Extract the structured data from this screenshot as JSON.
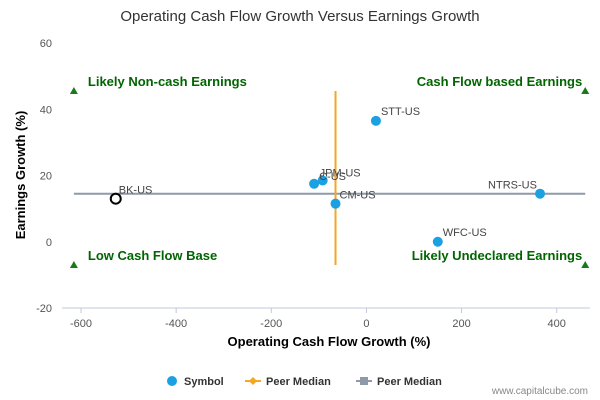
{
  "chart_data": {
    "type": "scatter",
    "title": "Operating Cash Flow Growth Versus Earnings Growth",
    "xlabel": "Operating Cash Flow Growth (%)",
    "ylabel": "Earnings Growth (%)",
    "xlim": [
      -640,
      470
    ],
    "ylim": [
      -20,
      60
    ],
    "x_ticks": [
      -600,
      -400,
      -200,
      0,
      200,
      400
    ],
    "y_ticks": [
      -20,
      0,
      20,
      40,
      60
    ],
    "grid": false,
    "legend_position": "bottom",
    "series": [
      {
        "name": "Symbol",
        "color": "#1ba1e2",
        "points": [
          {
            "label": "STT-US",
            "x": 20,
            "y": 36.5
          },
          {
            "label": "JPM-US",
            "x": -92,
            "y": 18.5
          },
          {
            "label": "C-US",
            "x": -110,
            "y": 17.5
          },
          {
            "label": "CM-US",
            "x": -65,
            "y": 11.5
          },
          {
            "label": "NTRS-US",
            "x": 365,
            "y": 14.5
          },
          {
            "label": "WFC-US",
            "x": 150,
            "y": 0
          },
          {
            "label": "BK-US",
            "x": -527,
            "y": 13,
            "hollow": true
          }
        ]
      },
      {
        "name": "Peer Median",
        "color": "#f5a623",
        "type": "vertical-line",
        "x": -65,
        "y_range": [
          -7,
          45.5
        ]
      },
      {
        "name": "Peer Median",
        "color": "#8e9aaa",
        "type": "horizontal-line",
        "y": 14.5,
        "x_range": [
          -615,
          460
        ]
      }
    ],
    "quadrant_labels": [
      {
        "text": "Likely Non-cash Earnings",
        "x": -615,
        "y": 45.5,
        "anchor": "start"
      },
      {
        "text": "Cash Flow based Earnings",
        "x": 460,
        "y": 45.5,
        "anchor": "end"
      },
      {
        "text": "Low Cash Flow Base",
        "x": -615,
        "y": -7,
        "anchor": "start"
      },
      {
        "text": "Likely Undeclared Earnings",
        "x": 460,
        "y": -7,
        "anchor": "end"
      }
    ],
    "quadrant_marker_color": "#1a7a1a"
  },
  "legend": {
    "items": [
      {
        "label": "Symbol",
        "kind": "circle",
        "color": "#1ba1e2"
      },
      {
        "label": "Peer Median",
        "kind": "diamond-line",
        "color": "#f5a623"
      },
      {
        "label": "Peer Median",
        "kind": "square-line",
        "color": "#8e9aaa"
      }
    ]
  },
  "credit": "www.capitalcube.com"
}
